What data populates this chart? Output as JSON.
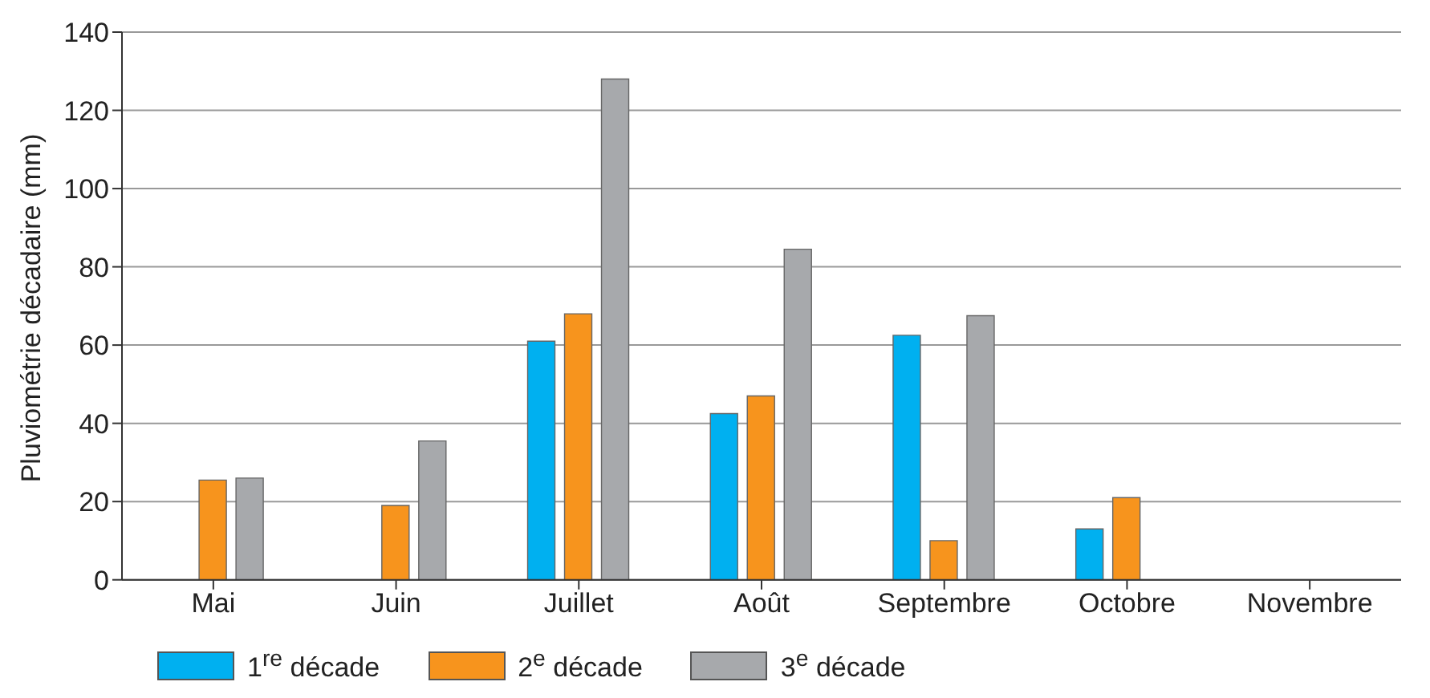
{
  "chart_data": {
    "type": "bar",
    "ylabel": "Pluviométrie décadaire (mm)",
    "categories": [
      "Mai",
      "Juin",
      "Juillet",
      "Août",
      "Septembre",
      "Octobre",
      "Novembre"
    ],
    "series": [
      {
        "name": "1$^{re}$ décade",
        "color": "#00b0f0",
        "values": [
          null,
          null,
          61,
          42.5,
          62.5,
          13,
          null
        ]
      },
      {
        "name": "2$^{e}$ décade",
        "color": "#f7941d",
        "values": [
          25.5,
          19,
          68,
          47,
          10,
          21,
          null
        ]
      },
      {
        "name": "3$^{e}$ décade",
        "color": "#a7a9ac",
        "values": [
          26,
          35.5,
          128,
          84.5,
          67.5,
          null,
          null
        ]
      }
    ],
    "ylim": [
      0,
      140
    ],
    "yticks": [
      0,
      20,
      40,
      60,
      80,
      100,
      120,
      140
    ],
    "grid": "y",
    "legend": "bottom left"
  }
}
